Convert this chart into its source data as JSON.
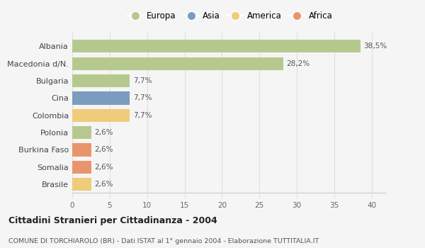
{
  "categories": [
    "Albania",
    "Macedonia d/N.",
    "Bulgaria",
    "Cina",
    "Colombia",
    "Polonia",
    "Burkina Faso",
    "Somalia",
    "Brasile"
  ],
  "values": [
    38.5,
    28.2,
    7.7,
    7.7,
    7.7,
    2.6,
    2.6,
    2.6,
    2.6
  ],
  "labels": [
    "38,5%",
    "28,2%",
    "7,7%",
    "7,7%",
    "7,7%",
    "2,6%",
    "2,6%",
    "2,6%",
    "2,6%"
  ],
  "colors": [
    "#b5c98e",
    "#b5c98e",
    "#b5c98e",
    "#7b9bbf",
    "#f0cb7a",
    "#b5c98e",
    "#e8956d",
    "#e8956d",
    "#f0cb7a"
  ],
  "legend": [
    {
      "label": "Europa",
      "color": "#b5c98e"
    },
    {
      "label": "Asia",
      "color": "#7b9bbf"
    },
    {
      "label": "America",
      "color": "#f0cb7a"
    },
    {
      "label": "Africa",
      "color": "#e8956d"
    }
  ],
  "xlim": [
    0,
    42
  ],
  "xticks": [
    0,
    5,
    10,
    15,
    20,
    25,
    30,
    35,
    40
  ],
  "title": "Cittadini Stranieri per Cittadinanza - 2004",
  "subtitle": "COMUNE DI TORCHIAROLO (BR) - Dati ISTAT al 1° gennaio 2004 - Elaborazione TUTTITALIA.IT",
  "background_color": "#f5f5f5",
  "grid_color": "#e0e0e0",
  "bar_height": 0.75
}
